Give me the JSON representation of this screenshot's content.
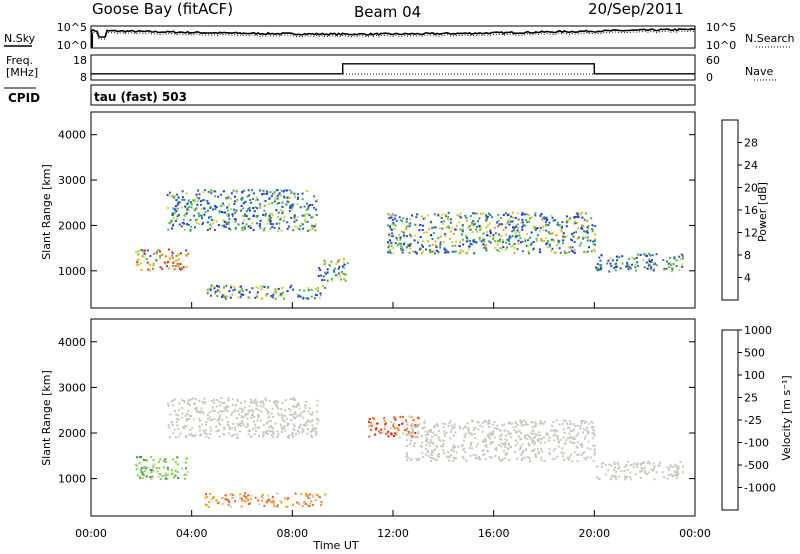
{
  "header": {
    "station": "Goose Bay (fitACF)",
    "beam": "Beam 04",
    "date": "20/Sep/2011"
  },
  "labels": {
    "nsky": "N.Sky",
    "nsearch": "N.Search",
    "freq_top": "Freq.",
    "freq_unit": "[MHz]",
    "nave": "Nave",
    "cpid": "CPID",
    "mode": "tau (fast) 503",
    "ylabel": "Slant Range [km]",
    "xlabel": "Time UT",
    "power_label": "Power [dB]",
    "velocity_label": "Velocity [m s⁻¹]"
  },
  "noise_axis": {
    "left": [
      "10^5",
      "10^0"
    ],
    "right": [
      "10^5",
      "10^0"
    ]
  },
  "freq_axis": {
    "left": [
      "18",
      "8"
    ],
    "right": [
      "60",
      "0"
    ]
  },
  "time_ticks": [
    "00:00",
    "04:00",
    "08:00",
    "12:00",
    "16:00",
    "20:00",
    "00:00"
  ],
  "range_ticks": [
    "1000",
    "2000",
    "3000",
    "4000"
  ],
  "power_scale": {
    "labels": [
      "4",
      "8",
      "12",
      "16",
      "20",
      "24",
      "28"
    ],
    "colors": [
      "#1a2ee8",
      "#2557c8",
      "#2e8a6e",
      "#46b94a",
      "#c9d93a",
      "#f5a623",
      "#f26a1b",
      "#e82020"
    ]
  },
  "velocity_scale": {
    "labels": [
      "-1000",
      "-500",
      "-100",
      "-25",
      "25",
      "100",
      "500",
      "1000"
    ],
    "colors": [
      "#e81e1e",
      "#f05a1e",
      "#f59a23",
      "#c8c8c0",
      "#c8c8c0",
      "#7fcf3a",
      "#2f9a3a",
      "#2a52b8"
    ]
  },
  "chart_data": {
    "type": "heatmap",
    "x_range": [
      "00:00",
      "24:00"
    ],
    "y_range_km": [
      180,
      4500
    ],
    "panels": [
      {
        "name": "Power",
        "unit": "dB",
        "scale": [
          0,
          32
        ],
        "echo_regions": [
          {
            "t_start": "01:45",
            "t_end": "03:50",
            "range_km": [
              1000,
              1500
            ],
            "level": "high"
          },
          {
            "t_start": "03:00",
            "t_end": "09:00",
            "range_km": [
              1900,
              2800
            ],
            "level": "low-mid"
          },
          {
            "t_start": "04:30",
            "t_end": "09:20",
            "range_km": [
              400,
              700
            ],
            "level": "mid"
          },
          {
            "t_start": "09:00",
            "t_end": "10:10",
            "range_km": [
              800,
              1300
            ],
            "level": "mid"
          },
          {
            "t_start": "11:45",
            "t_end": "20:00",
            "range_km": [
              1400,
              2300
            ],
            "level": "mid"
          },
          {
            "t_start": "20:00",
            "t_end": "23:30",
            "range_km": [
              1000,
              1400
            ],
            "level": "low-mid"
          }
        ]
      },
      {
        "name": "Velocity",
        "unit": "m/s",
        "scale": [
          -1000,
          1000
        ],
        "echo_regions": [
          {
            "t_start": "01:45",
            "t_end": "03:50",
            "range_km": [
              1000,
              1500
            ],
            "velocity_band": "100 to 500"
          },
          {
            "t_start": "03:00",
            "t_end": "09:00",
            "range_km": [
              1900,
              2800
            ],
            "velocity_band": "-25 to 25"
          },
          {
            "t_start": "04:30",
            "t_end": "09:20",
            "range_km": [
              400,
              700
            ],
            "velocity_band": "-500 to -100"
          },
          {
            "t_start": "11:00",
            "t_end": "13:00",
            "range_km": [
              1900,
              2400
            ],
            "velocity_band": "-1000 to -500"
          },
          {
            "t_start": "12:30",
            "t_end": "20:00",
            "range_km": [
              1400,
              2300
            ],
            "velocity_band": "-25 to 25"
          },
          {
            "t_start": "20:00",
            "t_end": "23:30",
            "range_km": [
              1000,
              1400
            ],
            "velocity_band": "-25 to 25"
          }
        ]
      }
    ],
    "frequency_MHz": [
      {
        "t_start": "00:00",
        "t_end": "10:00",
        "value": 10.5
      },
      {
        "t_start": "10:00",
        "t_end": "20:00",
        "value": 14.5
      },
      {
        "t_start": "20:00",
        "t_end": "24:00",
        "value": 10.5
      }
    ]
  }
}
